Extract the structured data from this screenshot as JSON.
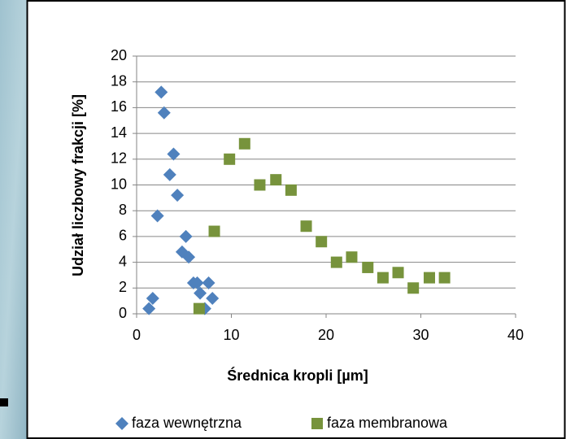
{
  "chart_data": {
    "type": "scatter",
    "xlabel": "Średnica kropli [µm]",
    "ylabel": "Udział liczbowy frakcji [%]",
    "xlim": [
      0,
      40
    ],
    "xticks": [
      0,
      10,
      20,
      30,
      40
    ],
    "ylim": [
      0,
      20
    ],
    "yticks": [
      0,
      2,
      4,
      6,
      8,
      10,
      12,
      14,
      16,
      18,
      20
    ],
    "grid": true,
    "legend": "bottom",
    "series": [
      {
        "name": "faza wewnętrzna",
        "color": "#4f81bd",
        "marker": "diamond",
        "x": [
          1.3,
          1.7,
          2.2,
          2.6,
          2.9,
          3.5,
          3.9,
          4.3,
          4.8,
          5.2,
          5.5,
          6.0,
          6.4,
          6.7,
          7.2,
          7.6,
          8.0
        ],
        "values": [
          0.4,
          1.2,
          7.6,
          17.2,
          15.6,
          10.8,
          12.4,
          9.2,
          4.8,
          6.0,
          4.4,
          2.4,
          2.4,
          1.6,
          0.4,
          2.4,
          1.2
        ]
      },
      {
        "name": "faza membranowa",
        "color": "#77933c",
        "marker": "square",
        "x": [
          6.6,
          8.2,
          9.8,
          11.4,
          13.0,
          14.7,
          16.3,
          17.9,
          19.5,
          21.1,
          22.7,
          24.4,
          26.0,
          27.6,
          29.2,
          30.9,
          32.5
        ],
        "values": [
          0.4,
          6.4,
          12.0,
          13.2,
          10.0,
          10.4,
          9.6,
          6.8,
          5.6,
          4.0,
          4.4,
          3.6,
          2.8,
          3.2,
          2.0,
          2.8,
          2.8
        ]
      }
    ]
  }
}
